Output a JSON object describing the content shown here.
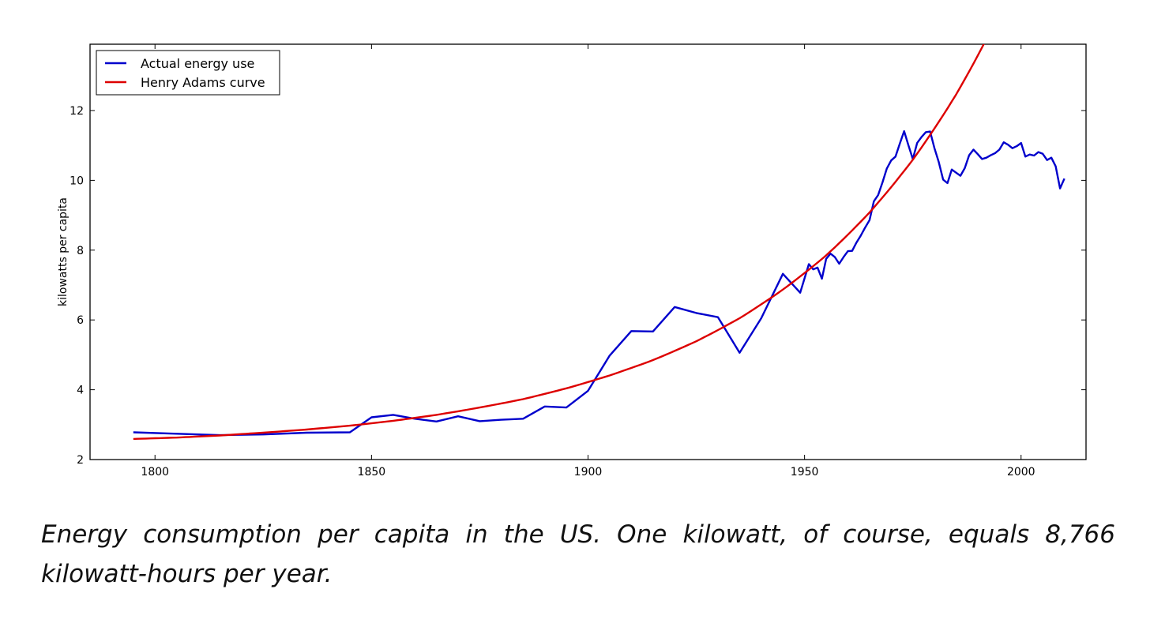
{
  "caption": "Energy consumption per capita in the US. One kilowatt, of course, equals 8,766 kilowatt-hours per year.",
  "chart_data": {
    "type": "line",
    "title": "",
    "xlabel": "",
    "ylabel": "kilowatts per capita",
    "xlim": [
      1785,
      2015
    ],
    "ylim": [
      2,
      13.9
    ],
    "xticks": [
      1800,
      1850,
      1900,
      1950,
      2000
    ],
    "yticks": [
      2,
      4,
      6,
      8,
      10,
      12
    ],
    "grid": false,
    "legend_position": "top-left",
    "series": [
      {
        "name": "Actual energy use",
        "color": "#0000cc",
        "x": [
          1795,
          1805,
          1815,
          1825,
          1835,
          1845,
          1850,
          1855,
          1860,
          1865,
          1870,
          1875,
          1880,
          1885,
          1890,
          1895,
          1900,
          1905,
          1910,
          1915,
          1920,
          1925,
          1930,
          1935,
          1940,
          1945,
          1949,
          1951,
          1952,
          1953,
          1954,
          1955,
          1956,
          1957,
          1958,
          1959,
          1960,
          1961,
          1962,
          1963,
          1964,
          1965,
          1966,
          1967,
          1968,
          1969,
          1970,
          1971,
          1972,
          1973,
          1974,
          1975,
          1976,
          1977,
          1978,
          1979,
          1980,
          1981,
          1982,
          1983,
          1984,
          1985,
          1986,
          1987,
          1988,
          1989,
          1990,
          1991,
          1992,
          1993,
          1994,
          1995,
          1996,
          1997,
          1998,
          1999,
          2000,
          2001,
          2002,
          2003,
          2004,
          2005,
          2006,
          2007,
          2008,
          2009,
          2010
        ],
        "y": [
          2.78,
          2.74,
          2.7,
          2.72,
          2.77,
          2.78,
          3.21,
          3.28,
          3.17,
          3.09,
          3.24,
          3.1,
          3.14,
          3.17,
          3.52,
          3.49,
          3.97,
          4.98,
          5.68,
          5.67,
          6.37,
          6.2,
          6.08,
          5.06,
          6.05,
          7.32,
          6.78,
          7.6,
          7.45,
          7.5,
          7.18,
          7.75,
          7.9,
          7.8,
          7.61,
          7.8,
          7.97,
          7.98,
          8.22,
          8.42,
          8.65,
          8.86,
          9.4,
          9.58,
          9.94,
          10.34,
          10.57,
          10.68,
          11.05,
          11.41,
          11.0,
          10.61,
          11.07,
          11.24,
          11.38,
          11.4,
          10.92,
          10.52,
          10.02,
          9.92,
          10.31,
          10.22,
          10.13,
          10.35,
          10.72,
          10.88,
          10.75,
          10.61,
          10.65,
          10.72,
          10.78,
          10.88,
          11.09,
          11.02,
          10.92,
          10.98,
          11.07,
          10.68,
          10.74,
          10.71,
          10.81,
          10.76,
          10.58,
          10.65,
          10.4,
          9.77,
          10.05
        ]
      },
      {
        "name": "Henry Adams curve",
        "color": "#dd0000",
        "x": [
          1795,
          1805,
          1815,
          1825,
          1835,
          1845,
          1855,
          1865,
          1875,
          1885,
          1895,
          1905,
          1915,
          1925,
          1935,
          1945,
          1955,
          1965,
          1975,
          1985,
          1995
        ],
        "y": [
          2.59,
          2.63,
          2.69,
          2.77,
          2.86,
          2.97,
          3.11,
          3.28,
          3.49,
          3.73,
          4.04,
          4.41,
          4.85,
          5.39,
          6.05,
          6.87,
          7.85,
          9.08,
          10.59,
          12.46,
          14.79
        ]
      }
    ]
  }
}
